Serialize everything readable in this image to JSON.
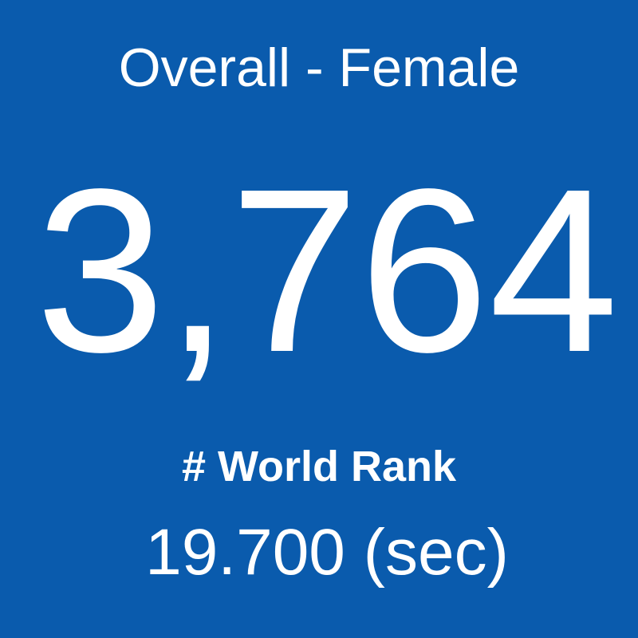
{
  "tile": {
    "title": "Overall - Female",
    "rank": "3,764",
    "label": "# World Rank",
    "time": "19.700 (sec)"
  }
}
